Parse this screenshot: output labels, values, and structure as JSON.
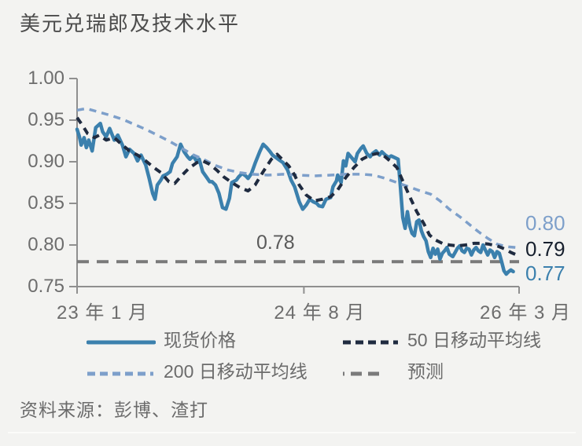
{
  "title": "美元兑瑞郎及技术水平",
  "source": "资料来源：彭博、渣打",
  "chart_data": {
    "type": "line",
    "title": "美元兑瑞郎及技术水平",
    "x_axis": {
      "unit": "months_since_2023-01",
      "start_label": "23 年 1 月",
      "end_label": "26 年 3 月",
      "range": [
        0,
        38
      ],
      "ticks": [
        {
          "m": 0,
          "label": "23 年 1 月"
        },
        {
          "m": 19.5,
          "label": "24 年 8 月"
        },
        {
          "m": 38,
          "label": "26 年 3 月"
        }
      ]
    },
    "y_axis": {
      "min": 0.75,
      "max": 1.0,
      "ticks": [
        {
          "value": 1.0,
          "label": "1.00"
        },
        {
          "value": 0.95,
          "label": "0.95"
        },
        {
          "value": 0.9,
          "label": "0.90"
        },
        {
          "value": 0.85,
          "label": "0.85"
        },
        {
          "value": 0.8,
          "label": "0.80"
        },
        {
          "value": 0.75,
          "label": "0.75"
        }
      ]
    },
    "grid": false,
    "legend_position": "bottom",
    "axis_color": "#8f8f8f",
    "series": [
      {
        "label": "现货价格",
        "color": "#3b80ad",
        "style": "solid",
        "width": 4.5,
        "points": [
          [
            0,
            0.939
          ],
          [
            0.2,
            0.93
          ],
          [
            0.35,
            0.92
          ],
          [
            0.6,
            0.929
          ],
          [
            0.8,
            0.917
          ],
          [
            1.0,
            0.926
          ],
          [
            1.3,
            0.913
          ],
          [
            1.6,
            0.941
          ],
          [
            2.0,
            0.946
          ],
          [
            2.2,
            0.936
          ],
          [
            2.5,
            0.93
          ],
          [
            2.8,
            0.94
          ],
          [
            3.2,
            0.926
          ],
          [
            3.5,
            0.932
          ],
          [
            3.9,
            0.92
          ],
          [
            4.2,
            0.906
          ],
          [
            4.5,
            0.915
          ],
          [
            4.9,
            0.91
          ],
          [
            5.2,
            0.901
          ],
          [
            5.5,
            0.908
          ],
          [
            5.9,
            0.896
          ],
          [
            6.2,
            0.88
          ],
          [
            6.5,
            0.862
          ],
          [
            6.7,
            0.855
          ],
          [
            6.9,
            0.872
          ],
          [
            7.2,
            0.878
          ],
          [
            7.4,
            0.883
          ],
          [
            7.7,
            0.885
          ],
          [
            8.0,
            0.888
          ],
          [
            8.2,
            0.898
          ],
          [
            8.6,
            0.906
          ],
          [
            8.9,
            0.921
          ],
          [
            9.2,
            0.912
          ],
          [
            9.5,
            0.906
          ],
          [
            9.7,
            0.903
          ],
          [
            10.0,
            0.907
          ],
          [
            10.3,
            0.9
          ],
          [
            10.5,
            0.903
          ],
          [
            10.8,
            0.888
          ],
          [
            11.1,
            0.882
          ],
          [
            11.4,
            0.876
          ],
          [
            11.6,
            0.876
          ],
          [
            11.9,
            0.872
          ],
          [
            12.2,
            0.862
          ],
          [
            12.5,
            0.845
          ],
          [
            12.8,
            0.843
          ],
          [
            13.1,
            0.856
          ],
          [
            13.3,
            0.875
          ],
          [
            13.7,
            0.878
          ],
          [
            13.9,
            0.882
          ],
          [
            14.2,
            0.886
          ],
          [
            14.5,
            0.883
          ],
          [
            14.7,
            0.88
          ],
          [
            15.0,
            0.886
          ],
          [
            15.3,
            0.898
          ],
          [
            15.7,
            0.912
          ],
          [
            16.0,
            0.921
          ],
          [
            16.3,
            0.917
          ],
          [
            16.6,
            0.912
          ],
          [
            16.8,
            0.908
          ],
          [
            17.1,
            0.905
          ],
          [
            17.4,
            0.902
          ],
          [
            17.7,
            0.899
          ],
          [
            18.1,
            0.89
          ],
          [
            18.4,
            0.878
          ],
          [
            18.7,
            0.87
          ],
          [
            19.1,
            0.852
          ],
          [
            19.4,
            0.843
          ],
          [
            19.7,
            0.848
          ],
          [
            20.0,
            0.855
          ],
          [
            20.3,
            0.852
          ],
          [
            20.6,
            0.85
          ],
          [
            20.8,
            0.847
          ],
          [
            21.1,
            0.846
          ],
          [
            21.4,
            0.855
          ],
          [
            21.8,
            0.857
          ],
          [
            22.0,
            0.87
          ],
          [
            22.3,
            0.877
          ],
          [
            22.4,
            0.884
          ],
          [
            22.7,
            0.875
          ],
          [
            22.9,
            0.901
          ],
          [
            23.1,
            0.895
          ],
          [
            23.3,
            0.91
          ],
          [
            23.6,
            0.905
          ],
          [
            23.9,
            0.9
          ],
          [
            24.1,
            0.91
          ],
          [
            24.4,
            0.916
          ],
          [
            24.6,
            0.919
          ],
          [
            24.9,
            0.91
          ],
          [
            25.2,
            0.906
          ],
          [
            25.4,
            0.91
          ],
          [
            25.7,
            0.913
          ],
          [
            26.0,
            0.908
          ],
          [
            26.2,
            0.912
          ],
          [
            26.5,
            0.908
          ],
          [
            26.8,
            0.905
          ],
          [
            27.0,
            0.907
          ],
          [
            27.3,
            0.905
          ],
          [
            27.6,
            0.903
          ],
          [
            27.8,
            0.87
          ],
          [
            28.0,
            0.833
          ],
          [
            28.2,
            0.82
          ],
          [
            28.4,
            0.84
          ],
          [
            28.6,
            0.823
          ],
          [
            28.8,
            0.814
          ],
          [
            29.0,
            0.811
          ],
          [
            29.2,
            0.828
          ],
          [
            29.4,
            0.83
          ],
          [
            29.6,
            0.817
          ],
          [
            29.8,
            0.81
          ],
          [
            30.0,
            0.805
          ],
          [
            30.2,
            0.792
          ],
          [
            30.4,
            0.785
          ],
          [
            30.6,
            0.796
          ],
          [
            30.8,
            0.789
          ],
          [
            31.0,
            0.795
          ],
          [
            31.2,
            0.783
          ],
          [
            31.4,
            0.79
          ],
          [
            31.6,
            0.793
          ],
          [
            31.8,
            0.797
          ],
          [
            32.0,
            0.789
          ],
          [
            32.3,
            0.786
          ],
          [
            32.5,
            0.791
          ],
          [
            32.7,
            0.796
          ],
          [
            32.9,
            0.799
          ],
          [
            33.1,
            0.793
          ],
          [
            33.3,
            0.791
          ],
          [
            33.5,
            0.796
          ],
          [
            33.7,
            0.795
          ],
          [
            33.9,
            0.788
          ],
          [
            34.1,
            0.794
          ],
          [
            34.3,
            0.797
          ],
          [
            34.5,
            0.793
          ],
          [
            34.7,
            0.791
          ],
          [
            34.9,
            0.8
          ],
          [
            35.1,
            0.794
          ],
          [
            35.3,
            0.788
          ],
          [
            35.5,
            0.794
          ],
          [
            35.7,
            0.792
          ],
          [
            35.9,
            0.785
          ],
          [
            36.1,
            0.792
          ],
          [
            36.3,
            0.79
          ],
          [
            36.5,
            0.78
          ],
          [
            36.7,
            0.769
          ],
          [
            36.9,
            0.765
          ],
          [
            37.1,
            0.768
          ],
          [
            37.3,
            0.77
          ],
          [
            37.5,
            0.768
          ]
        ]
      },
      {
        "label": "50 日移动平均线",
        "color": "#1f2b40",
        "style": "dashed",
        "dash": "9,7",
        "legend_dash": "10,6",
        "width": 4,
        "points": [
          [
            0,
            0.953
          ],
          [
            0.5,
            0.943
          ],
          [
            0.9,
            0.934
          ],
          [
            1.5,
            0.929
          ],
          [
            1.9,
            0.932
          ],
          [
            2.5,
            0.926
          ],
          [
            3.2,
            0.929
          ],
          [
            3.9,
            0.92
          ],
          [
            4.5,
            0.913
          ],
          [
            5.2,
            0.908
          ],
          [
            5.9,
            0.901
          ],
          [
            6.6,
            0.893
          ],
          [
            7.2,
            0.887
          ],
          [
            7.9,
            0.876
          ],
          [
            8.4,
            0.874
          ],
          [
            8.9,
            0.882
          ],
          [
            9.6,
            0.892
          ],
          [
            10.3,
            0.899
          ],
          [
            10.8,
            0.901
          ],
          [
            11.4,
            0.897
          ],
          [
            12.0,
            0.89
          ],
          [
            12.6,
            0.882
          ],
          [
            13.3,
            0.875
          ],
          [
            14.0,
            0.869
          ],
          [
            14.7,
            0.865
          ],
          [
            15.3,
            0.872
          ],
          [
            16.0,
            0.888
          ],
          [
            16.7,
            0.903
          ],
          [
            17.2,
            0.909
          ],
          [
            17.7,
            0.902
          ],
          [
            18.2,
            0.895
          ],
          [
            18.7,
            0.884
          ],
          [
            19.1,
            0.872
          ],
          [
            19.7,
            0.86
          ],
          [
            20.4,
            0.853
          ],
          [
            21.1,
            0.855
          ],
          [
            21.8,
            0.858
          ],
          [
            22.4,
            0.866
          ],
          [
            23.1,
            0.881
          ],
          [
            23.8,
            0.893
          ],
          [
            24.5,
            0.903
          ],
          [
            25.2,
            0.908
          ],
          [
            25.8,
            0.91
          ],
          [
            26.4,
            0.907
          ],
          [
            26.9,
            0.901
          ],
          [
            27.5,
            0.893
          ],
          [
            28.0,
            0.877
          ],
          [
            28.6,
            0.858
          ],
          [
            29.2,
            0.84
          ],
          [
            29.8,
            0.826
          ],
          [
            30.3,
            0.812
          ],
          [
            30.8,
            0.806
          ],
          [
            31.4,
            0.802
          ],
          [
            32.0,
            0.8
          ],
          [
            32.7,
            0.799
          ],
          [
            33.4,
            0.8
          ],
          [
            34.1,
            0.802
          ],
          [
            34.8,
            0.802
          ],
          [
            35.4,
            0.801
          ],
          [
            36.1,
            0.799
          ],
          [
            36.8,
            0.795
          ],
          [
            37.3,
            0.791
          ],
          [
            37.8,
            0.788
          ]
        ]
      },
      {
        "label": "200 日移动平均线",
        "color": "#7d9fca",
        "style": "dashed",
        "dash": "9,7",
        "legend_dash": "10,6",
        "width": 3.5,
        "points": [
          [
            0,
            0.962
          ],
          [
            0.8,
            0.964
          ],
          [
            1.8,
            0.96
          ],
          [
            2.8,
            0.956
          ],
          [
            3.9,
            0.951
          ],
          [
            4.9,
            0.945
          ],
          [
            5.9,
            0.939
          ],
          [
            6.9,
            0.932
          ],
          [
            7.9,
            0.925
          ],
          [
            8.9,
            0.917
          ],
          [
            9.9,
            0.909
          ],
          [
            11.0,
            0.902
          ],
          [
            12.0,
            0.895
          ],
          [
            13.0,
            0.89
          ],
          [
            14.0,
            0.887
          ],
          [
            15.0,
            0.885
          ],
          [
            16.4,
            0.884
          ],
          [
            17.7,
            0.885
          ],
          [
            19.1,
            0.884
          ],
          [
            20.4,
            0.883
          ],
          [
            21.8,
            0.884
          ],
          [
            23.1,
            0.885
          ],
          [
            24.5,
            0.885
          ],
          [
            25.5,
            0.884
          ],
          [
            26.5,
            0.88
          ],
          [
            27.5,
            0.875
          ],
          [
            28.5,
            0.87
          ],
          [
            29.5,
            0.865
          ],
          [
            30.4,
            0.861
          ],
          [
            31.2,
            0.853
          ],
          [
            32.0,
            0.843
          ],
          [
            32.9,
            0.834
          ],
          [
            33.7,
            0.825
          ],
          [
            34.5,
            0.816
          ],
          [
            35.3,
            0.808
          ],
          [
            36.1,
            0.801
          ],
          [
            36.9,
            0.798
          ],
          [
            37.7,
            0.797
          ]
        ]
      },
      {
        "label": "预测",
        "color": "#7a7a7a",
        "style": "dashed",
        "dash": "15,10",
        "legend_dash": "2,8,14,8,14,8",
        "width": 4,
        "points": [
          [
            0,
            0.78
          ],
          [
            38,
            0.78
          ]
        ]
      }
    ],
    "annotations": [
      {
        "text": "0.78",
        "color": "#5a5a5a",
        "refers_to": "预测"
      }
    ],
    "end_value_labels": [
      {
        "text": "0.80",
        "color": "#7d9fca",
        "refers_to": "200 日移动平均线"
      },
      {
        "text": "0.79",
        "color": "#17202e",
        "refers_to": "50 日移动平均线"
      },
      {
        "text": "0.77",
        "color": "#3b80ad",
        "refers_to": "现货价格"
      }
    ]
  }
}
